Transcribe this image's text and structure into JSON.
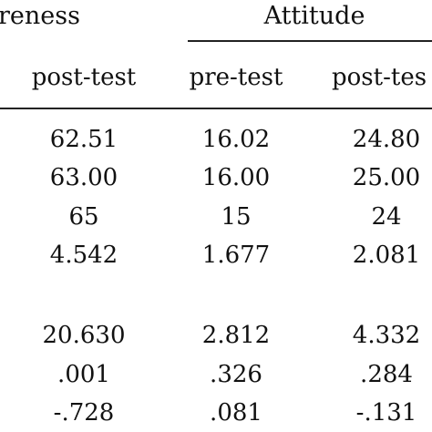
{
  "header": {
    "group_awareness": "reness",
    "group_attitude": "Attitude",
    "columns": [
      "post-test",
      "pre-test",
      "post-tes"
    ]
  },
  "rows": [
    [
      "62.51",
      "16.02",
      "24.80"
    ],
    [
      "63.00",
      "16.00",
      "25.00"
    ],
    [
      "65",
      "15",
      "24"
    ],
    [
      "4.542",
      "1.677",
      "2.081"
    ],
    [
      "20.630",
      "2.812",
      "4.332"
    ],
    [
      ".001",
      ".326",
      ".284"
    ],
    [
      "-.728",
      ".081",
      "-.131"
    ]
  ]
}
